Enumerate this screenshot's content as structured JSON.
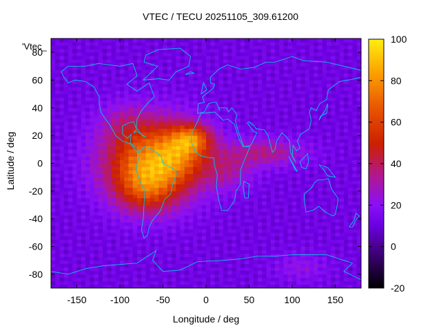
{
  "chart_data": {
    "type": "heatmap",
    "title": "VTEC / TECU 20251105_309.61200",
    "legend_label": "'Vtec_",
    "xlabel": "Longitude / deg",
    "ylabel": "Latitude / deg",
    "xlim": [
      -180,
      180
    ],
    "ylim": [
      -90,
      90
    ],
    "x_ticks": [
      -150,
      -100,
      -50,
      0,
      50,
      100,
      150
    ],
    "y_ticks": [
      -80,
      -60,
      -40,
      -20,
      0,
      20,
      40,
      60,
      80
    ],
    "colorbar": {
      "range": [
        -20,
        100
      ],
      "ticks": [
        -20,
        0,
        20,
        40,
        60,
        80,
        100
      ],
      "palette": [
        "#000000",
        "#4a0090",
        "#7a00ff",
        "#a020f0",
        "#c21060",
        "#d82a00",
        "#f07800",
        "#ffd400",
        "#ffff60"
      ]
    },
    "field": {
      "description_source": "estimated from color",
      "background_level": 12,
      "peak_level": 92,
      "peak_location": [
        -60,
        10
      ],
      "anomaly_peak_location": [
        -15,
        20
      ]
    },
    "overlay": "coastlines"
  }
}
